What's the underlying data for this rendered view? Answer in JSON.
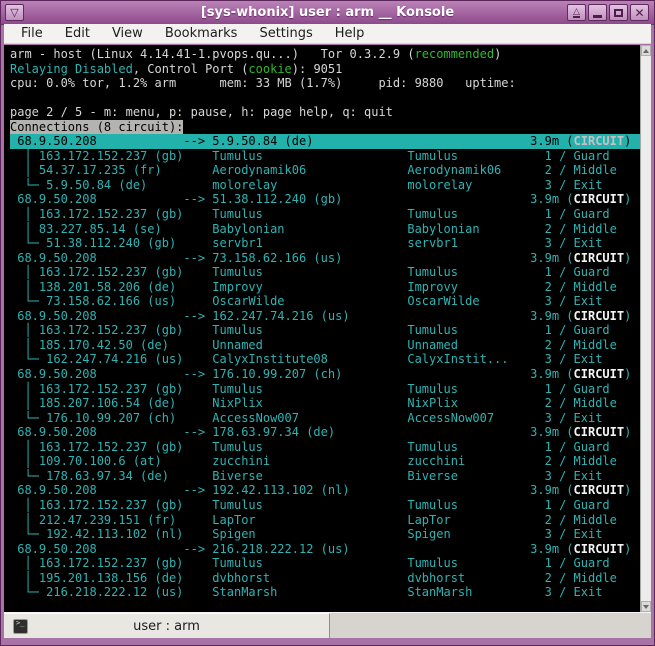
{
  "window": {
    "title": "[sys-whonix] user : arm __ Konsole"
  },
  "icons": {
    "window_menu": "▽",
    "shade": "△",
    "close": "✕"
  },
  "menu": {
    "items": [
      "File",
      "Edit",
      "View",
      "Bookmarks",
      "Settings",
      "Help"
    ]
  },
  "tabbar": {
    "active_tab_label": "user : arm"
  },
  "colors": {
    "frame_purple": "#a873a6",
    "terminal_background": "#000000",
    "terminal_cyan": "#2fb3b3",
    "terminal_green": "#2eb82e",
    "selection_background": "#22b2ab",
    "header_invert_background": "#b3b3af"
  },
  "terminal": {
    "lines": [
      {
        "type": "text",
        "segs": [
          {
            "t": "arm - host (Linux 4.14.41-1.pvops.qu...)   Tor 0.3.2.9 (",
            "c": "w"
          },
          {
            "t": "recommended",
            "c": "g"
          },
          {
            "t": ")",
            "c": "w"
          }
        ]
      },
      {
        "type": "text",
        "segs": [
          {
            "t": "Relaying Disabled",
            "c": "c"
          },
          {
            "t": ", Control Port (",
            "c": "w"
          },
          {
            "t": "cookie",
            "c": "g"
          },
          {
            "t": "): 9051",
            "c": "w"
          }
        ]
      },
      {
        "type": "text",
        "segs": [
          {
            "t": "cpu: 0.0% tor, 1.2% arm      mem: 33 MB (1.7%)     pid: 9880   uptime:",
            "c": "w"
          }
        ]
      },
      {
        "type": "text",
        "segs": []
      },
      {
        "type": "text",
        "segs": [
          {
            "t": "page 2 / 5 - m: menu, p: pause, h: page help, q: quit",
            "c": "w"
          }
        ]
      },
      {
        "type": "text",
        "segs": [
          {
            "t": "Connections (8 circuit):",
            "c": "inv"
          }
        ]
      },
      {
        "type": "circuit",
        "sel": true,
        "local": "68.9.50.208",
        "target": "5.9.50.84 (de)",
        "time": "3.9m",
        "ctype": "CIRCUIT"
      },
      {
        "type": "relay",
        "tree": "mid",
        "ip": "163.172.152.237 (gb)",
        "nick": "Tumulus",
        "nick2": "Tumulus",
        "pos": "1 / Guard"
      },
      {
        "type": "relay",
        "tree": "mid",
        "ip": "54.37.17.235 (fr)",
        "nick": "Aerodynamik06",
        "nick2": "Aerodynamik06",
        "pos": "2 / Middle"
      },
      {
        "type": "relay",
        "tree": "end",
        "ip": "5.9.50.84 (de)",
        "nick": "molorelay",
        "nick2": "molorelay",
        "pos": "3 / Exit"
      },
      {
        "type": "circuit",
        "local": "68.9.50.208",
        "target": "51.38.112.240 (gb)",
        "time": "3.9m",
        "ctype": "CIRCUIT"
      },
      {
        "type": "relay",
        "tree": "mid",
        "ip": "163.172.152.237 (gb)",
        "nick": "Tumulus",
        "nick2": "Tumulus",
        "pos": "1 / Guard"
      },
      {
        "type": "relay",
        "tree": "mid",
        "ip": "83.227.85.14 (se)",
        "nick": "Babylonian",
        "nick2": "Babylonian",
        "pos": "2 / Middle"
      },
      {
        "type": "relay",
        "tree": "end",
        "ip": "51.38.112.240 (gb)",
        "nick": "servbr1",
        "nick2": "servbr1",
        "pos": "3 / Exit"
      },
      {
        "type": "circuit",
        "local": "68.9.50.208",
        "target": "73.158.62.166 (us)",
        "time": "3.9m",
        "ctype": "CIRCUIT"
      },
      {
        "type": "relay",
        "tree": "mid",
        "ip": "163.172.152.237 (gb)",
        "nick": "Tumulus",
        "nick2": "Tumulus",
        "pos": "1 / Guard"
      },
      {
        "type": "relay",
        "tree": "mid",
        "ip": "138.201.58.206 (de)",
        "nick": "Improvy",
        "nick2": "Improvy",
        "pos": "2 / Middle"
      },
      {
        "type": "relay",
        "tree": "end",
        "ip": "73.158.62.166 (us)",
        "nick": "OscarWilde",
        "nick2": "OscarWilde",
        "pos": "3 / Exit"
      },
      {
        "type": "circuit",
        "local": "68.9.50.208",
        "target": "162.247.74.216 (us)",
        "time": "3.9m",
        "ctype": "CIRCUIT"
      },
      {
        "type": "relay",
        "tree": "mid",
        "ip": "163.172.152.237 (gb)",
        "nick": "Tumulus",
        "nick2": "Tumulus",
        "pos": "1 / Guard"
      },
      {
        "type": "relay",
        "tree": "mid",
        "ip": "185.170.42.50 (de)",
        "nick": "Unnamed",
        "nick2": "Unnamed",
        "pos": "2 / Middle"
      },
      {
        "type": "relay",
        "tree": "end",
        "ip": "162.247.74.216 (us)",
        "nick": "CalyxInstitute08",
        "nick2": "CalyxInstit...",
        "pos": "3 / Exit"
      },
      {
        "type": "circuit",
        "local": "68.9.50.208",
        "target": "176.10.99.207 (ch)",
        "time": "3.9m",
        "ctype": "CIRCUIT"
      },
      {
        "type": "relay",
        "tree": "mid",
        "ip": "163.172.152.237 (gb)",
        "nick": "Tumulus",
        "nick2": "Tumulus",
        "pos": "1 / Guard"
      },
      {
        "type": "relay",
        "tree": "mid",
        "ip": "185.207.106.54 (de)",
        "nick": "NixPlix",
        "nick2": "NixPlix",
        "pos": "2 / Middle"
      },
      {
        "type": "relay",
        "tree": "end",
        "ip": "176.10.99.207 (ch)",
        "nick": "AccessNow007",
        "nick2": "AccessNow007",
        "pos": "3 / Exit"
      },
      {
        "type": "circuit",
        "local": "68.9.50.208",
        "target": "178.63.97.34 (de)",
        "time": "3.9m",
        "ctype": "CIRCUIT"
      },
      {
        "type": "relay",
        "tree": "mid",
        "ip": "163.172.152.237 (gb)",
        "nick": "Tumulus",
        "nick2": "Tumulus",
        "pos": "1 / Guard"
      },
      {
        "type": "relay",
        "tree": "mid",
        "ip": "109.70.100.6 (at)",
        "nick": "zucchini",
        "nick2": "zucchini",
        "pos": "2 / Middle"
      },
      {
        "type": "relay",
        "tree": "end",
        "ip": "178.63.97.34 (de)",
        "nick": "Biverse",
        "nick2": "Biverse",
        "pos": "3 / Exit"
      },
      {
        "type": "circuit",
        "local": "68.9.50.208",
        "target": "192.42.113.102 (nl)",
        "time": "3.9m",
        "ctype": "CIRCUIT"
      },
      {
        "type": "relay",
        "tree": "mid",
        "ip": "163.172.152.237 (gb)",
        "nick": "Tumulus",
        "nick2": "Tumulus",
        "pos": "1 / Guard"
      },
      {
        "type": "relay",
        "tree": "mid",
        "ip": "212.47.239.151 (fr)",
        "nick": "LapTor",
        "nick2": "LapTor",
        "pos": "2 / Middle"
      },
      {
        "type": "relay",
        "tree": "end",
        "ip": "192.42.113.102 (nl)",
        "nick": "Spigen",
        "nick2": "Spigen",
        "pos": "3 / Exit"
      },
      {
        "type": "circuit",
        "local": "68.9.50.208",
        "target": "216.218.222.12 (us)",
        "time": "3.9m",
        "ctype": "CIRCUIT"
      },
      {
        "type": "relay",
        "tree": "mid",
        "ip": "163.172.152.237 (gb)",
        "nick": "Tumulus",
        "nick2": "Tumulus",
        "pos": "1 / Guard"
      },
      {
        "type": "relay",
        "tree": "mid",
        "ip": "195.201.138.156 (de)",
        "nick": "dvbhorst",
        "nick2": "dvbhorst",
        "pos": "2 / Middle"
      },
      {
        "type": "relay",
        "tree": "end",
        "ip": "216.218.222.12 (us)",
        "nick": "StanMarsh",
        "nick2": "StanMarsh",
        "pos": "3 / Exit"
      }
    ]
  }
}
